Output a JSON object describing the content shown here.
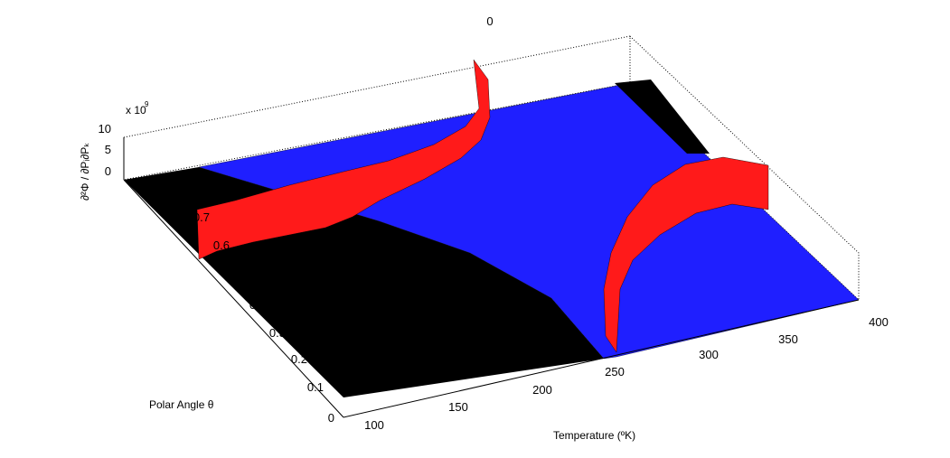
{
  "chart_data": {
    "type": "surface",
    "title": "0",
    "xlabel": "Temperature (ºK)",
    "ylabel": "Polar Angle θ",
    "zlabel": "∂²Φ / ∂Pᵢ∂Pₖ",
    "zscale_label": "x 10",
    "zscale_exponent": "9",
    "xlim": [
      100,
      400
    ],
    "ylim": [
      0,
      0.8
    ],
    "zlim": [
      0,
      10
    ],
    "xticks": [
      "100",
      "150",
      "200",
      "250",
      "300",
      "350",
      "400"
    ],
    "yticks": [
      "0",
      "0.1",
      "0.2",
      "0.3",
      "0.4",
      "0.5",
      "0.6",
      "0.7"
    ],
    "zticks": [
      "0",
      "5",
      "10"
    ],
    "grid": true,
    "colors": {
      "surface_blue": "#1a1aff",
      "surface_red": "#ff1a1a",
      "below_region": "#000000",
      "mesh": "#000000"
    },
    "regions": [
      {
        "name": "low-temperature black floor",
        "value": 0,
        "color": "#000000"
      },
      {
        "name": "blue surface",
        "value": 0,
        "color": "#1a1aff"
      },
      {
        "name": "red walls along boundary",
        "value_range": [
          0,
          6
        ],
        "color": "#ff1a1a"
      }
    ],
    "boundary_curve": {
      "x": [
        100,
        130,
        160,
        190,
        210,
        230,
        240,
        250
      ],
      "y": [
        0.5,
        0.46,
        0.4,
        0.32,
        0.25,
        0.17,
        0.1,
        0.02
      ]
    }
  }
}
